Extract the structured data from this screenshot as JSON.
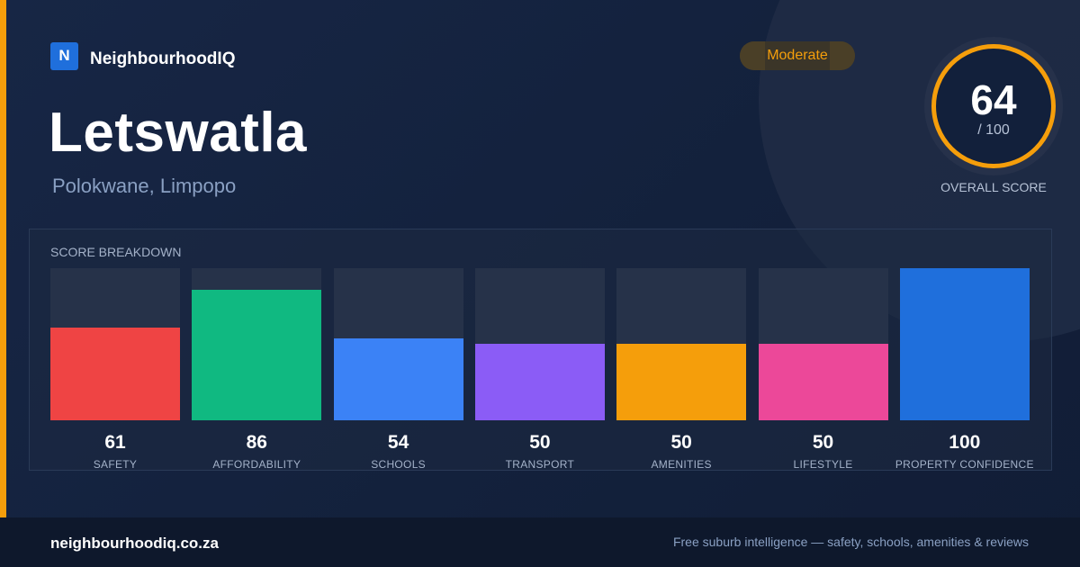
{
  "brand": {
    "logo_letter": "N",
    "name": "NeighbourhoodIQ"
  },
  "suburb": {
    "name": "Letswatla",
    "location": "Polokwane, Limpopo"
  },
  "rating_badge": "Moderate",
  "overall": {
    "score": "64",
    "max": "/ 100",
    "caption": "OVERALL SCORE"
  },
  "breakdown": {
    "title": "SCORE BREAKDOWN",
    "max_value": 100,
    "items": [
      {
        "label": "SAFETY",
        "value": 61,
        "display": "61",
        "color": "#ef4444"
      },
      {
        "label": "AFFORDABILITY",
        "value": 86,
        "display": "86",
        "color": "#10b981"
      },
      {
        "label": "SCHOOLS",
        "value": 54,
        "display": "54",
        "color": "#3b82f6"
      },
      {
        "label": "TRANSPORT",
        "value": 50,
        "display": "50",
        "color": "#8b5cf6"
      },
      {
        "label": "AMENITIES",
        "value": 50,
        "display": "50",
        "color": "#f59e0b"
      },
      {
        "label": "LIFESTYLE",
        "value": 50,
        "display": "50",
        "color": "#ec4899"
      },
      {
        "label": "PROPERTY CONFIDENCE",
        "value": 100,
        "display": "100",
        "color": "#1f6fdc"
      }
    ]
  },
  "footer": {
    "domain": "neighbourhoodiq.co.za",
    "tagline": "Free suburb intelligence — safety, schools, amenities & reviews"
  },
  "colors": {
    "accent": "#f59e0b",
    "background": "#15223c",
    "footer": "#0e182c"
  }
}
